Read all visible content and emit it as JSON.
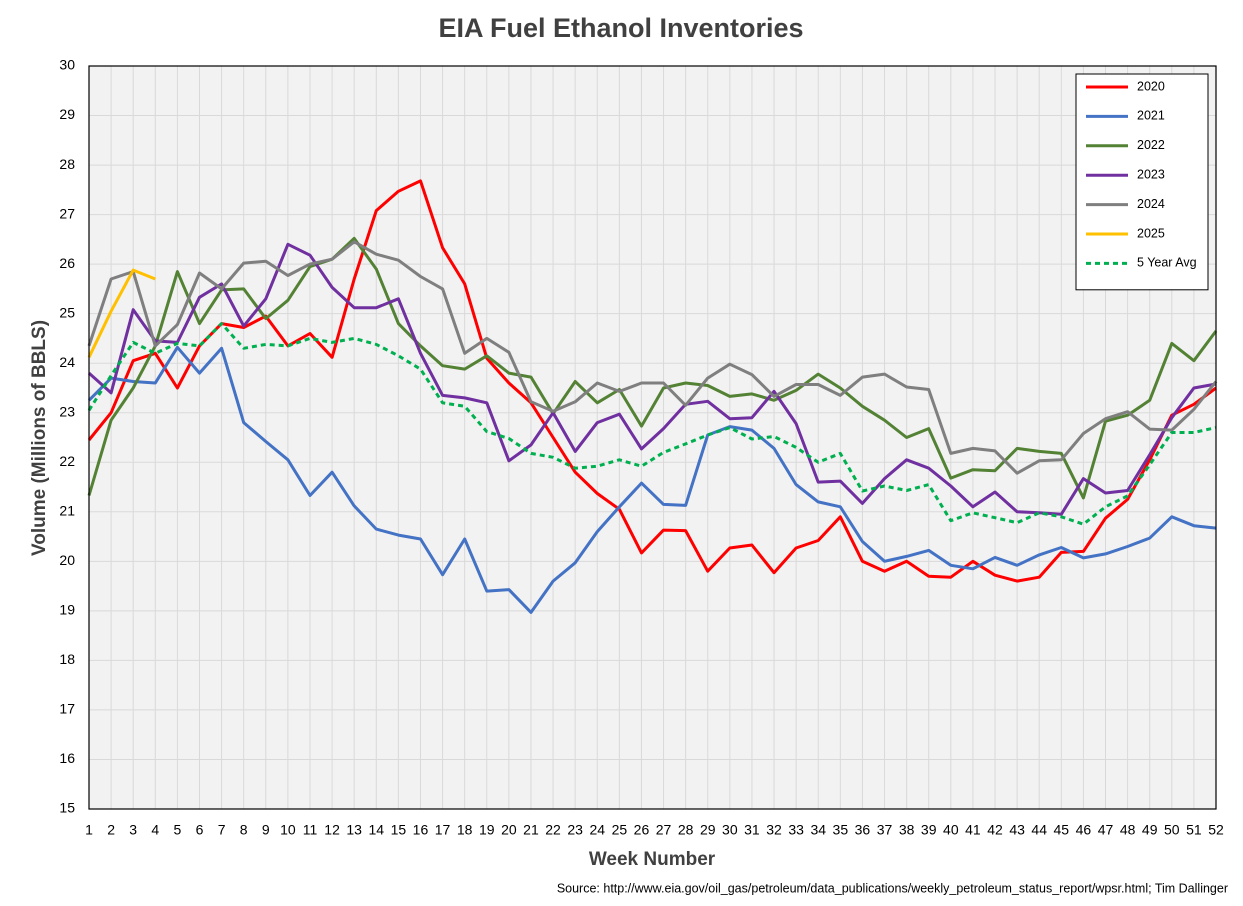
{
  "chart_data": {
    "type": "line",
    "title": "EIA Fuel Ethanol Inventories",
    "x_label": "Week Number",
    "y_label": "Volume (Millions of BBLS)",
    "source": "Source: http://www.eia.gov/oil_gas/petroleum/data_publications/weekly_petroleum_status_report/wpsr.html; Tim Dallinger",
    "x": [
      1,
      2,
      3,
      4,
      5,
      6,
      7,
      8,
      9,
      10,
      11,
      12,
      13,
      14,
      15,
      16,
      17,
      18,
      19,
      20,
      21,
      22,
      23,
      24,
      25,
      26,
      27,
      28,
      29,
      30,
      31,
      32,
      33,
      34,
      35,
      36,
      37,
      38,
      39,
      40,
      41,
      42,
      43,
      44,
      45,
      46,
      47,
      48,
      49,
      50,
      51,
      52
    ],
    "xlim": [
      1,
      52
    ],
    "xticks": [
      1,
      2,
      3,
      4,
      5,
      6,
      7,
      8,
      9,
      10,
      11,
      12,
      13,
      14,
      15,
      16,
      17,
      18,
      19,
      20,
      21,
      22,
      23,
      24,
      25,
      26,
      27,
      28,
      29,
      30,
      31,
      32,
      33,
      34,
      35,
      36,
      37,
      38,
      39,
      40,
      41,
      42,
      43,
      44,
      45,
      46,
      47,
      48,
      49,
      50,
      51,
      52
    ],
    "ylim": [
      15,
      30
    ],
    "yticks": [
      15,
      16,
      17,
      18,
      19,
      20,
      21,
      22,
      23,
      24,
      25,
      26,
      27,
      28,
      29,
      30
    ],
    "grid": true,
    "legend": "top-right",
    "series": [
      {
        "name": "2020",
        "color": "#ff0000",
        "style": "solid",
        "values": [
          22.45,
          23.0,
          24.05,
          24.2,
          23.5,
          24.35,
          24.8,
          24.72,
          24.95,
          24.35,
          24.6,
          24.12,
          25.7,
          27.08,
          27.47,
          27.68,
          26.33,
          25.6,
          24.1,
          23.6,
          23.2,
          22.5,
          21.8,
          21.37,
          21.05,
          20.17,
          20.63,
          20.62,
          19.8,
          20.27,
          20.33,
          19.77,
          20.27,
          20.42,
          20.9,
          20.0,
          19.8,
          20.0,
          19.7,
          19.68,
          20.0,
          19.72,
          19.6,
          19.68,
          20.18,
          20.2,
          20.87,
          21.25,
          22.05,
          22.95,
          23.17,
          23.5
        ]
      },
      {
        "name": "2021",
        "color": "#4472c4",
        "style": "solid",
        "values": [
          23.25,
          23.7,
          23.63,
          23.6,
          24.32,
          23.8,
          24.3,
          22.8,
          22.42,
          22.05,
          21.33,
          21.8,
          21.12,
          20.65,
          20.53,
          20.45,
          19.73,
          20.45,
          19.4,
          19.43,
          18.97,
          19.6,
          19.97,
          20.6,
          21.1,
          21.58,
          21.15,
          21.13,
          22.55,
          22.72,
          22.65,
          22.28,
          21.55,
          21.2,
          21.1,
          20.4,
          20.0,
          20.1,
          20.22,
          19.92,
          19.85,
          20.08,
          19.92,
          20.13,
          20.28,
          20.07,
          20.15,
          20.3,
          20.47,
          20.9,
          20.72,
          20.67
        ]
      },
      {
        "name": "2022",
        "color": "#548235",
        "style": "solid",
        "values": [
          21.33,
          22.85,
          23.5,
          24.35,
          25.85,
          24.8,
          25.48,
          25.5,
          24.9,
          25.27,
          25.95,
          26.1,
          26.52,
          25.9,
          24.8,
          24.35,
          23.95,
          23.88,
          24.15,
          23.8,
          23.72,
          22.98,
          23.63,
          23.2,
          23.47,
          22.73,
          23.5,
          23.6,
          23.55,
          23.33,
          23.38,
          23.25,
          23.45,
          23.78,
          23.5,
          23.13,
          22.85,
          22.5,
          22.68,
          21.68,
          21.85,
          21.83,
          22.28,
          22.22,
          22.18,
          21.28,
          22.83,
          22.95,
          23.25,
          24.4,
          24.05,
          24.65
        ]
      },
      {
        "name": "2023",
        "color": "#7030a0",
        "style": "solid",
        "values": [
          23.8,
          23.4,
          25.08,
          24.45,
          24.42,
          25.33,
          25.6,
          24.75,
          25.3,
          26.4,
          26.18,
          25.53,
          25.12,
          25.12,
          25.3,
          24.2,
          23.35,
          23.3,
          23.2,
          22.03,
          22.35,
          23.0,
          22.22,
          22.8,
          22.97,
          22.27,
          22.68,
          23.17,
          23.23,
          22.88,
          22.9,
          23.43,
          22.78,
          21.6,
          21.62,
          21.17,
          21.67,
          22.05,
          21.88,
          21.52,
          21.1,
          21.4,
          21.0,
          20.98,
          20.95,
          21.67,
          21.38,
          21.43,
          22.15,
          22.9,
          23.5,
          23.58
        ]
      },
      {
        "name": "2024",
        "color": "#7f7f7f",
        "style": "solid",
        "values": [
          24.35,
          25.7,
          25.85,
          24.35,
          24.78,
          25.82,
          25.5,
          26.02,
          26.06,
          25.77,
          26.0,
          26.1,
          26.45,
          26.2,
          26.08,
          25.75,
          25.5,
          24.2,
          24.5,
          24.22,
          23.22,
          23.03,
          23.22,
          23.6,
          23.43,
          23.6,
          23.6,
          23.15,
          23.7,
          23.98,
          23.77,
          23.33,
          23.57,
          23.57,
          23.35,
          23.72,
          23.78,
          23.52,
          23.47,
          22.18,
          22.28,
          22.23,
          21.78,
          22.03,
          22.05,
          22.58,
          22.88,
          23.02,
          22.67,
          22.65,
          23.07,
          23.63
        ]
      },
      {
        "name": "2025",
        "color": "#ffc000",
        "style": "solid",
        "values": [
          24.12,
          25.05,
          25.88,
          25.7,
          null,
          null,
          null,
          null,
          null,
          null,
          null,
          null,
          null,
          null,
          null,
          null,
          null,
          null,
          null,
          null,
          null,
          null,
          null,
          null,
          null,
          null,
          null,
          null,
          null,
          null,
          null,
          null,
          null,
          null,
          null,
          null,
          null,
          null,
          null,
          null,
          null,
          null,
          null,
          null,
          null,
          null,
          null,
          null,
          null,
          null,
          null,
          null
        ]
      },
      {
        "name": "5 Year Avg",
        "color": "#00b050",
        "style": "dashed",
        "values": [
          23.05,
          23.75,
          24.42,
          24.2,
          24.4,
          24.35,
          24.8,
          24.3,
          24.38,
          24.35,
          24.5,
          24.42,
          24.5,
          24.38,
          24.15,
          23.88,
          23.2,
          23.13,
          22.62,
          22.48,
          22.18,
          22.1,
          21.88,
          21.92,
          22.05,
          21.92,
          22.2,
          22.37,
          22.55,
          22.7,
          22.47,
          22.52,
          22.3,
          22.0,
          22.18,
          21.42,
          21.52,
          21.43,
          21.55,
          20.82,
          20.98,
          20.88,
          20.78,
          20.98,
          20.9,
          20.75,
          21.1,
          21.32,
          21.95,
          22.6,
          22.6,
          22.7
        ]
      }
    ]
  }
}
